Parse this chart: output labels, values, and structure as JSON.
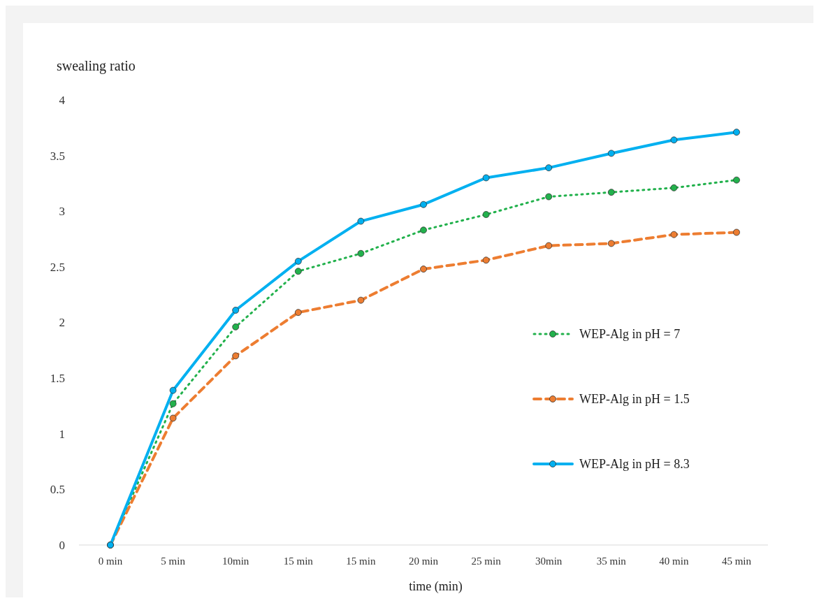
{
  "chart_data": {
    "type": "line",
    "xlabel": "time (min)",
    "ylabel": "swealing ratio",
    "categories": [
      "0 min",
      "5 min",
      "10min",
      "15 min",
      "15 min",
      "20 min",
      "25 min",
      "30min",
      "35 min",
      "40 min",
      "45 min"
    ],
    "ylim": [
      0,
      4
    ],
    "yticks": [
      0,
      0.5,
      1,
      1.5,
      2,
      2.5,
      3,
      3.5,
      4
    ],
    "grid": false,
    "legend": "right",
    "marker": "circle",
    "series": [
      {
        "name": "WEP-Alg in pH = 7",
        "color": "#22b14c",
        "line_style": "dotted",
        "values": [
          0,
          1.27,
          1.96,
          2.46,
          2.62,
          2.83,
          2.97,
          3.13,
          3.17,
          3.21,
          3.28
        ]
      },
      {
        "name": "WEP-Alg in pH = 1.5",
        "color": "#ed7d31",
        "line_style": "dashed",
        "values": [
          0,
          1.14,
          1.7,
          2.09,
          2.2,
          2.48,
          2.56,
          2.69,
          2.71,
          2.79,
          2.81
        ]
      },
      {
        "name": "WEP-Alg in pH = 8.3",
        "color": "#00b0f0",
        "line_style": "solid",
        "values": [
          0,
          1.39,
          2.11,
          2.55,
          2.91,
          3.06,
          3.3,
          3.39,
          3.52,
          3.64,
          3.71
        ]
      }
    ]
  }
}
